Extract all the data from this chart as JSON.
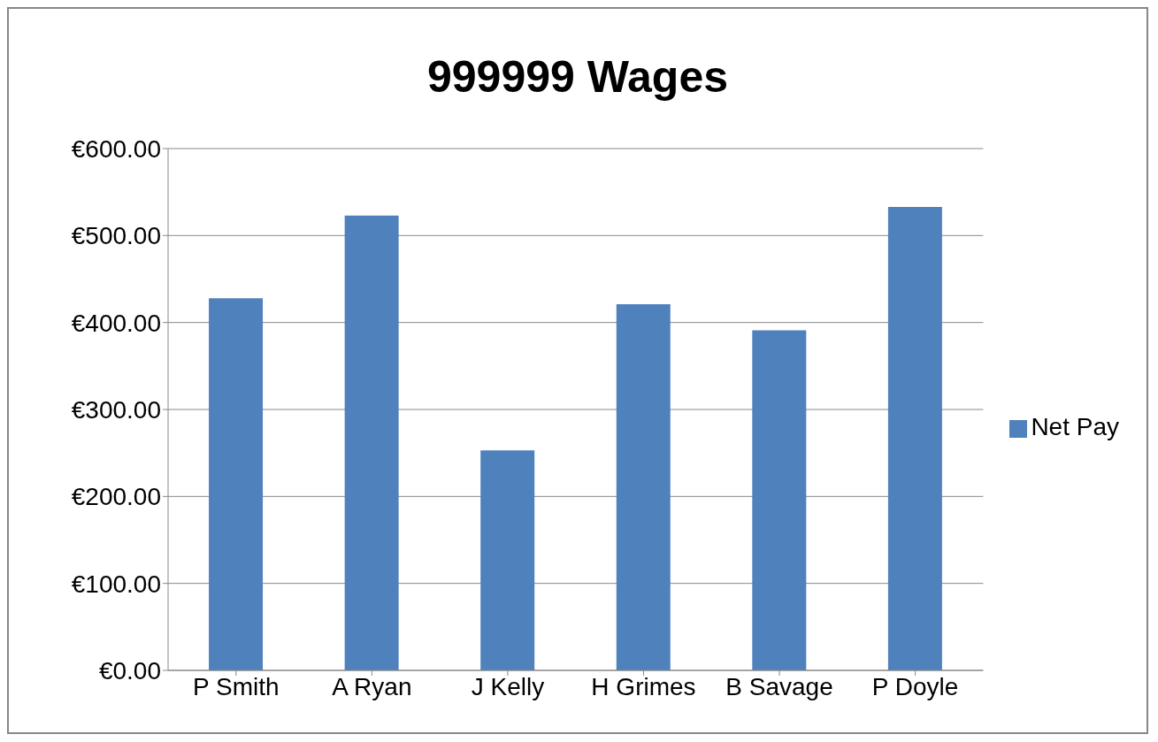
{
  "chart_data": {
    "type": "bar",
    "title": "999999 Wages",
    "categories": [
      "P Smith",
      "A Ryan",
      "J Kelly",
      "H Grimes",
      "B Savage",
      "P Doyle"
    ],
    "series": [
      {
        "name": "Net Pay",
        "color": "#4f81bd",
        "values": [
          428,
          523,
          253,
          421,
          391,
          533
        ]
      }
    ],
    "ylim": [
      0,
      600
    ],
    "yticks": [
      {
        "value": 0,
        "label": "€0.00"
      },
      {
        "value": 100,
        "label": "€100.00"
      },
      {
        "value": 200,
        "label": "€200.00"
      },
      {
        "value": 300,
        "label": "€300.00"
      },
      {
        "value": 400,
        "label": "€400.00"
      },
      {
        "value": 500,
        "label": "€500.00"
      },
      {
        "value": 600,
        "label": "€600.00"
      }
    ],
    "grid": "y",
    "legend": "right"
  }
}
